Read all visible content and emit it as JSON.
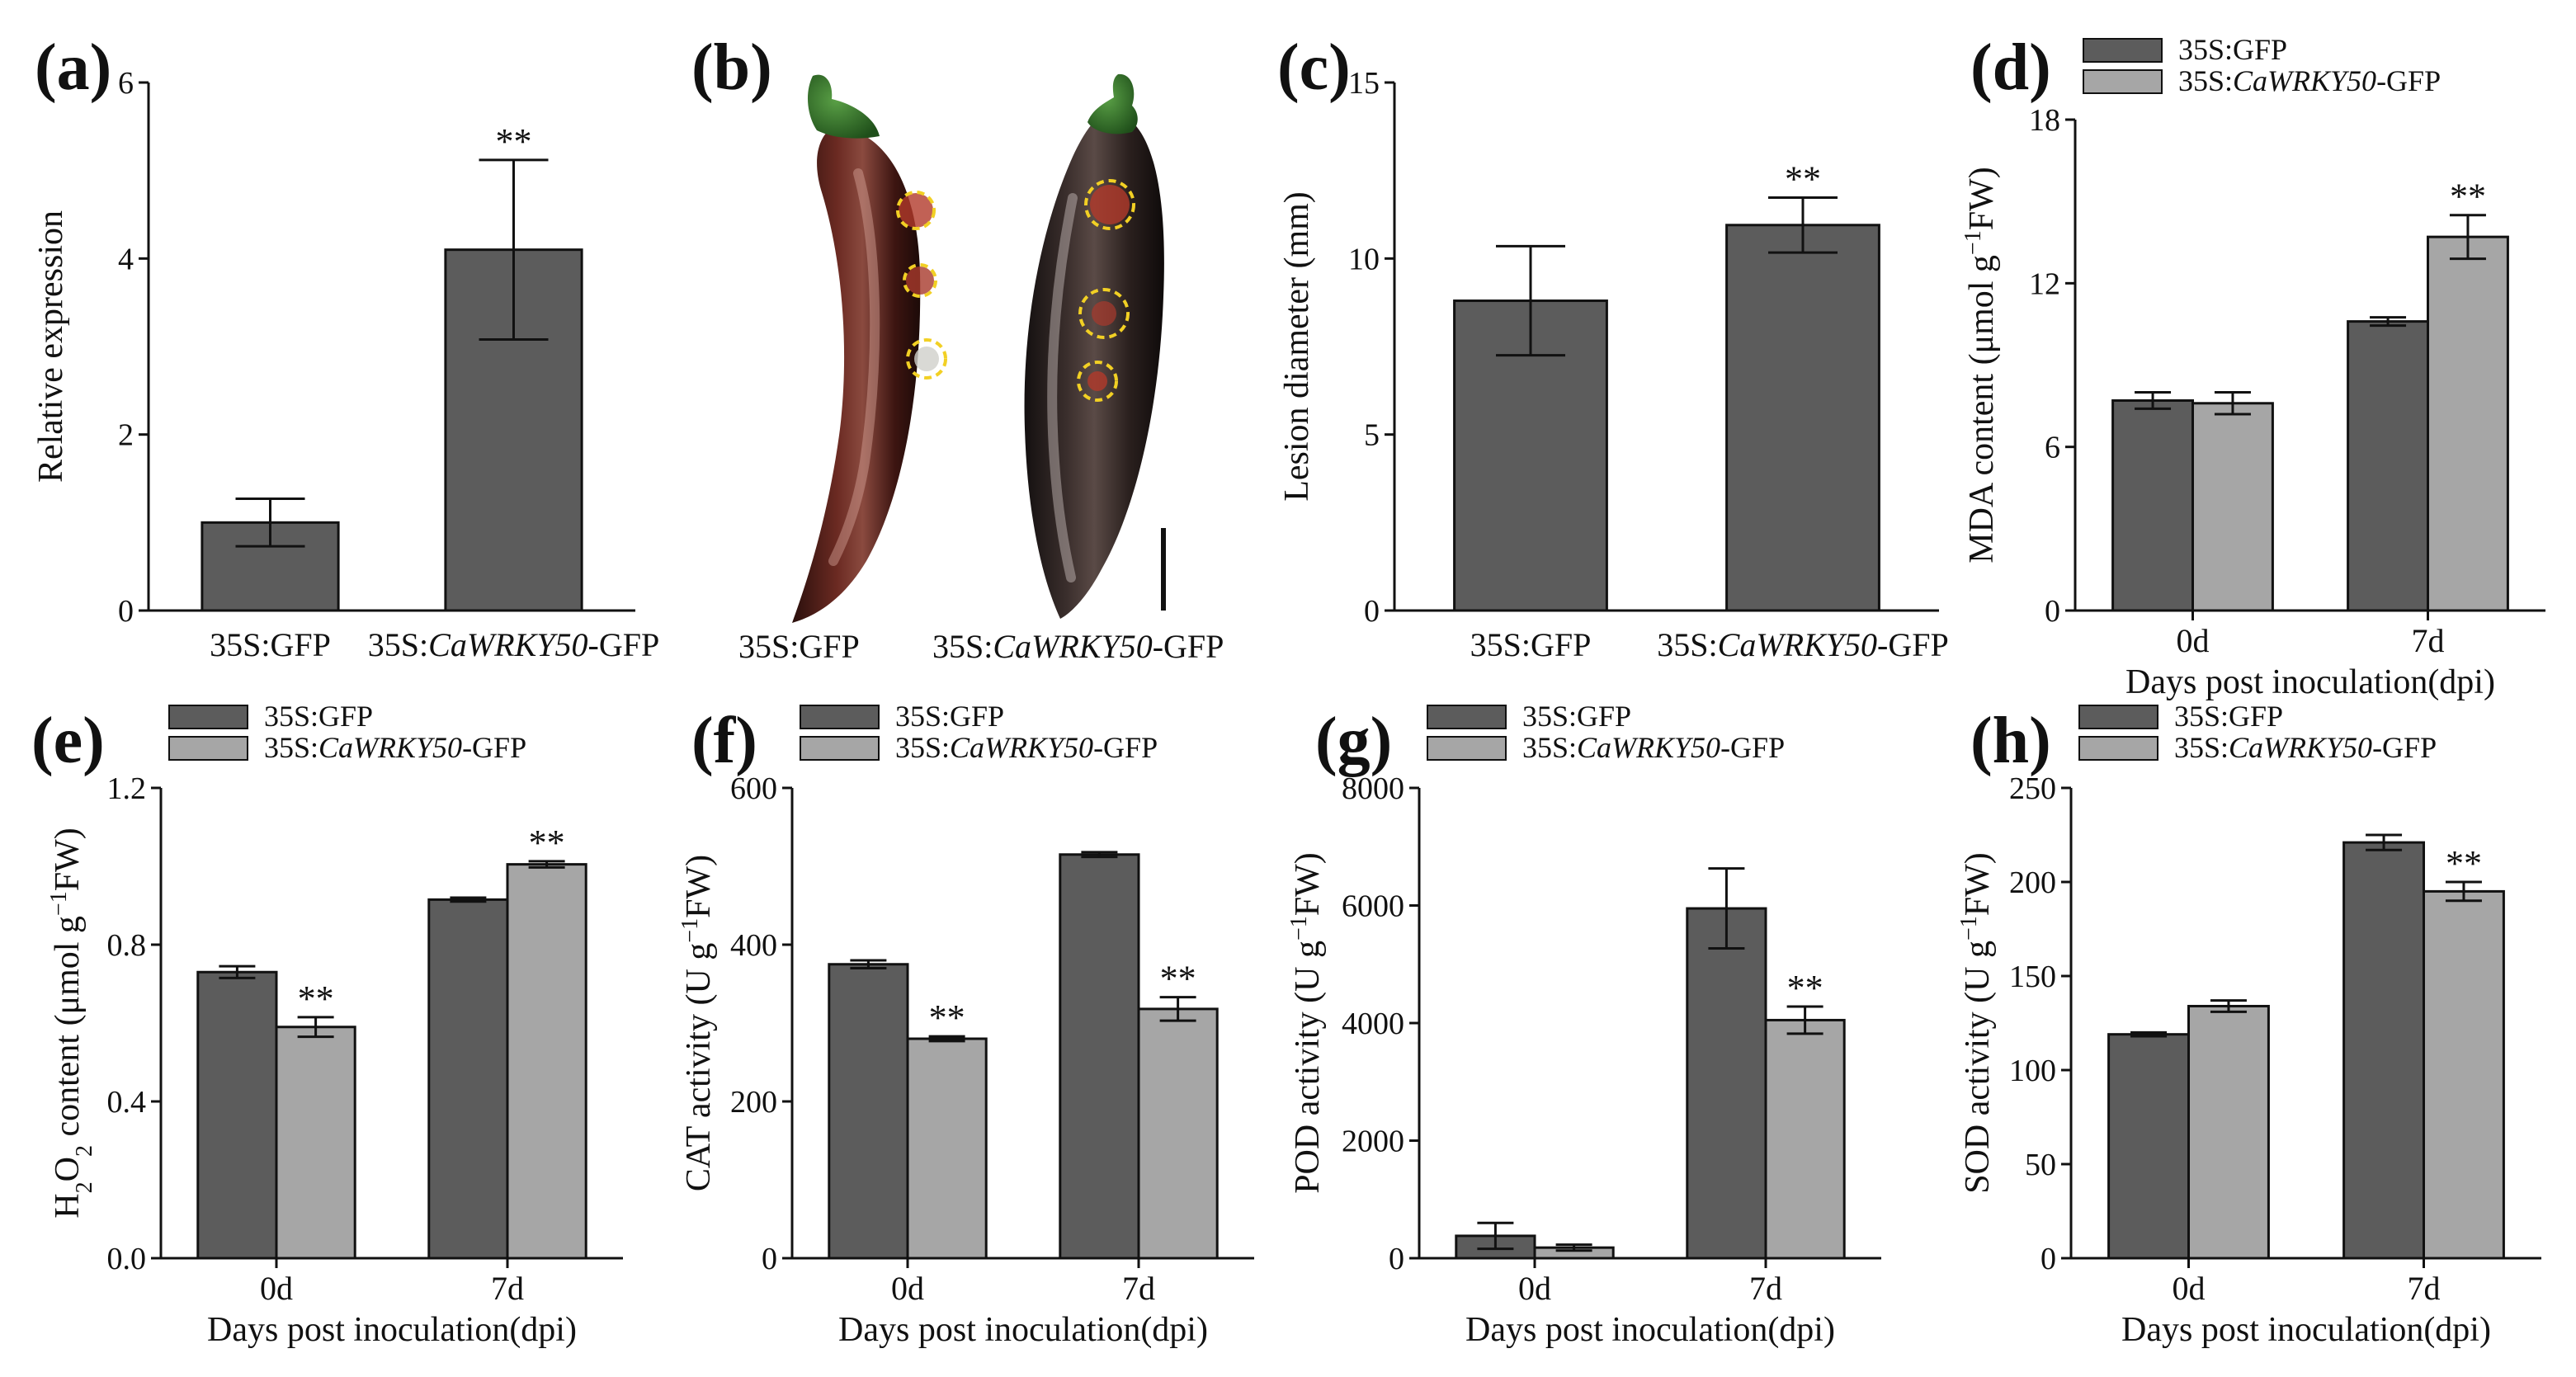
{
  "colors": {
    "gfp": "#5c5c5c",
    "caw": "#a6a6a6",
    "axis": "#111111",
    "lesion_ring": "#f2d024"
  },
  "panels": {
    "a": {
      "letter": "(a)"
    },
    "b": {
      "letter": "(b)",
      "labels": [
        {
          "prefix": "35S:GFP",
          "italic": "",
          "suffix": ""
        },
        {
          "prefix": "35S:",
          "italic": "CaWRKY50",
          "suffix": "-GFP"
        }
      ]
    },
    "c": {
      "letter": "(c)"
    },
    "d": {
      "letter": "(d)"
    },
    "e": {
      "letter": "(e)"
    },
    "f": {
      "letter": "(f)"
    },
    "g": {
      "letter": "(g)"
    },
    "h": {
      "letter": "(h)"
    }
  },
  "chart_data": [
    {
      "id": "a",
      "type": "bar",
      "categories": [
        {
          "prefix": "35S:GFP",
          "italic": "",
          "suffix": ""
        },
        {
          "prefix": "35S:",
          "italic": "CaWRKY50",
          "suffix": "-GFP"
        }
      ],
      "values": [
        1.0,
        4.1
      ],
      "errors": [
        0.27,
        1.02
      ],
      "significance": [
        "",
        "**"
      ],
      "ylabel": [
        {
          "t": "Relative expression"
        }
      ],
      "ylim": [
        0,
        6
      ],
      "yticks": [
        0,
        2,
        4,
        6
      ],
      "bar_color": "gfp"
    },
    {
      "id": "c",
      "type": "bar",
      "categories": [
        {
          "prefix": "35S:GFP",
          "italic": "",
          "suffix": ""
        },
        {
          "prefix": "35S:",
          "italic": "CaWRKY50",
          "suffix": "-GFP"
        }
      ],
      "values": [
        8.8,
        10.95
      ],
      "errors": [
        1.55,
        0.78
      ],
      "significance": [
        "",
        "**"
      ],
      "ylabel": [
        {
          "t": "Lesion diameter (mm)"
        }
      ],
      "ylim": [
        0,
        15
      ],
      "yticks": [
        0,
        5,
        10,
        15
      ],
      "bar_color": "gfp"
    },
    {
      "id": "d",
      "type": "bar",
      "categories": [
        "0d",
        "7d"
      ],
      "xlabel": "Days post inoculation(dpi)",
      "ylabel": [
        {
          "t": "MDA content (μmol g"
        },
        {
          "t": "−1",
          "sup": true
        },
        {
          "t": "FW)"
        }
      ],
      "ylim": [
        0,
        18
      ],
      "yticks": [
        0,
        6,
        12,
        18
      ],
      "legend": [
        {
          "prefix": "35S:GFP",
          "italic": "",
          "suffix": ""
        },
        {
          "prefix": "35S:",
          "italic": "CaWRKY50",
          "suffix": "-GFP"
        }
      ],
      "series": [
        {
          "name": "35S:GFP",
          "values": [
            7.7,
            10.6
          ],
          "errors": [
            0.3,
            0.15
          ],
          "significance": [
            "",
            ""
          ]
        },
        {
          "name": "35S:CaWRKY50-GFP",
          "values": [
            7.6,
            13.7
          ],
          "errors": [
            0.4,
            0.8
          ],
          "significance": [
            "",
            "**"
          ]
        }
      ]
    },
    {
      "id": "e",
      "type": "bar",
      "categories": [
        "0d",
        "7d"
      ],
      "xlabel": "Days post inoculation(dpi)",
      "ylabel": [
        {
          "t": "H"
        },
        {
          "t": "2",
          "sub": true
        },
        {
          "t": "O"
        },
        {
          "t": "2",
          "sub": true
        },
        {
          "t": " content (μmol g"
        },
        {
          "t": "−1",
          "sup": true
        },
        {
          "t": "FW)"
        }
      ],
      "ylim": [
        0,
        1.2
      ],
      "yticks": [
        "0.0",
        "0.4",
        "0.8",
        "1.2"
      ],
      "legend": [
        {
          "prefix": "35S:GFP",
          "italic": "",
          "suffix": ""
        },
        {
          "prefix": "35S:",
          "italic": "CaWRKY50",
          "suffix": "-GFP"
        }
      ],
      "series": [
        {
          "name": "35S:GFP",
          "values": [
            0.73,
            0.915
          ],
          "errors": [
            0.015,
            0.005
          ],
          "significance": [
            "",
            ""
          ]
        },
        {
          "name": "35S:CaWRKY50-GFP",
          "values": [
            0.59,
            1.005
          ],
          "errors": [
            0.025,
            0.008
          ],
          "significance": [
            "**",
            "**"
          ]
        }
      ]
    },
    {
      "id": "f",
      "type": "bar",
      "categories": [
        "0d",
        "7d"
      ],
      "xlabel": "Days post inoculation(dpi)",
      "ylabel": [
        {
          "t": "CAT activity (U g"
        },
        {
          "t": "−1",
          "sup": true
        },
        {
          "t": "FW)"
        }
      ],
      "ylim": [
        0,
        600
      ],
      "yticks": [
        0,
        200,
        400,
        600
      ],
      "legend": [
        {
          "prefix": "35S:GFP",
          "italic": "",
          "suffix": ""
        },
        {
          "prefix": "35S:",
          "italic": "CaWRKY50",
          "suffix": "-GFP"
        }
      ],
      "series": [
        {
          "name": "35S:GFP",
          "values": [
            375,
            515
          ],
          "errors": [
            5,
            3
          ],
          "significance": [
            "",
            ""
          ]
        },
        {
          "name": "35S:CaWRKY50-GFP",
          "values": [
            280,
            318
          ],
          "errors": [
            3,
            15
          ],
          "significance": [
            "**",
            "**"
          ]
        }
      ]
    },
    {
      "id": "g",
      "type": "bar",
      "categories": [
        "0d",
        "7d"
      ],
      "xlabel": "Days post inoculation(dpi)",
      "ylabel": [
        {
          "t": "POD activity (U g"
        },
        {
          "t": "−1",
          "sup": true
        },
        {
          "t": "FW)"
        }
      ],
      "ylim": [
        0,
        8000
      ],
      "yticks": [
        0,
        2000,
        4000,
        6000,
        8000
      ],
      "legend": [
        {
          "prefix": "35S:GFP",
          "italic": "",
          "suffix": ""
        },
        {
          "prefix": "35S:",
          "italic": "CaWRKY50",
          "suffix": "-GFP"
        }
      ],
      "series": [
        {
          "name": "35S:GFP",
          "values": [
            380,
            5950
          ],
          "errors": [
            220,
            680
          ],
          "significance": [
            "",
            ""
          ]
        },
        {
          "name": "35S:CaWRKY50-GFP",
          "values": [
            180,
            4050
          ],
          "errors": [
            50,
            230
          ],
          "significance": [
            "",
            "**"
          ]
        }
      ]
    },
    {
      "id": "h",
      "type": "bar",
      "categories": [
        "0d",
        "7d"
      ],
      "xlabel": "Days post inoculation(dpi)",
      "ylabel": [
        {
          "t": "SOD activity (U g"
        },
        {
          "t": "−1",
          "sup": true
        },
        {
          "t": "FW)"
        }
      ],
      "ylim": [
        0,
        250
      ],
      "yticks": [
        0,
        50,
        100,
        150,
        200,
        250
      ],
      "legend": [
        {
          "prefix": "35S:GFP",
          "italic": "",
          "suffix": ""
        },
        {
          "prefix": "35S:",
          "italic": "CaWRKY50",
          "suffix": "-GFP"
        }
      ],
      "series": [
        {
          "name": "35S:GFP",
          "values": [
            119,
            221
          ],
          "errors": [
            1,
            4
          ],
          "significance": [
            "",
            ""
          ]
        },
        {
          "name": "35S:CaWRKY50-GFP",
          "values": [
            134,
            195
          ],
          "errors": [
            3,
            5
          ],
          "significance": [
            "",
            "**"
          ]
        }
      ]
    }
  ]
}
